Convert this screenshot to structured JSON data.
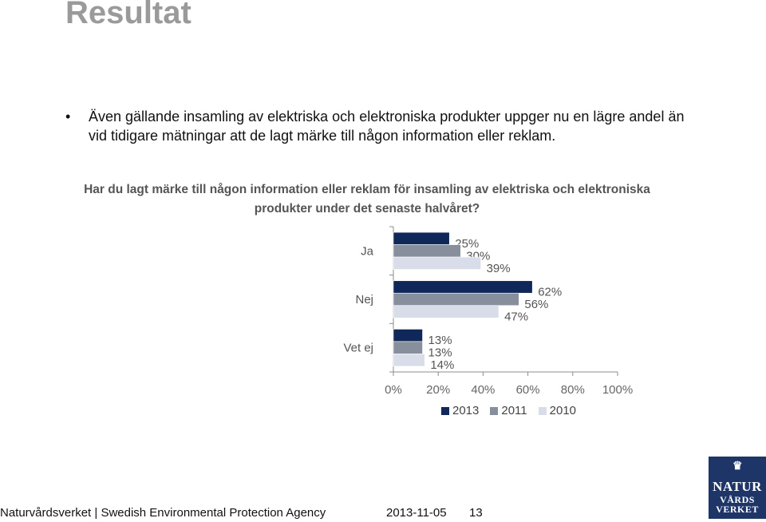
{
  "slide": {
    "title": "Resultat",
    "bullet": "Även gällande insamling av elektriska och elektroniska produkter uppger nu en lägre andel än vid tidigare mätningar att de lagt märke till någon information eller reklam.",
    "question": "Har du lagt märke till någon information eller reklam för insamling av elektriska och elektroniska produkter under det senaste halvåret?"
  },
  "chart_data": {
    "type": "bar",
    "orientation": "horizontal",
    "categories": [
      "Ja",
      "Nej",
      "Vet ej"
    ],
    "series": [
      {
        "name": "2013",
        "values": [
          25,
          62,
          13
        ],
        "labels": [
          "25%",
          "62%",
          "13%"
        ],
        "color": "#0f2859"
      },
      {
        "name": "2011",
        "values": [
          30,
          56,
          13
        ],
        "labels": [
          "30%",
          "56%",
          "13%"
        ],
        "color": "#878f9c"
      },
      {
        "name": "2010",
        "values": [
          39,
          47,
          14
        ],
        "labels": [
          "39%",
          "47%",
          "14%"
        ],
        "color": "#d9dde9"
      }
    ],
    "xlim": [
      0,
      100
    ],
    "xticks": [
      "0%",
      "20%",
      "40%",
      "60%",
      "80%",
      "100%"
    ],
    "grid": false,
    "legend": "bottom"
  },
  "legend": {
    "items": [
      "2013",
      "2011",
      "2010"
    ]
  },
  "footer": {
    "org": "Naturvårdsverket | Swedish Environmental Protection Agency",
    "date": "2013-11-05",
    "page": "13"
  },
  "logo": {
    "line1": "NATUR",
    "line2": "VÅRDS",
    "line3": "VERKET"
  }
}
